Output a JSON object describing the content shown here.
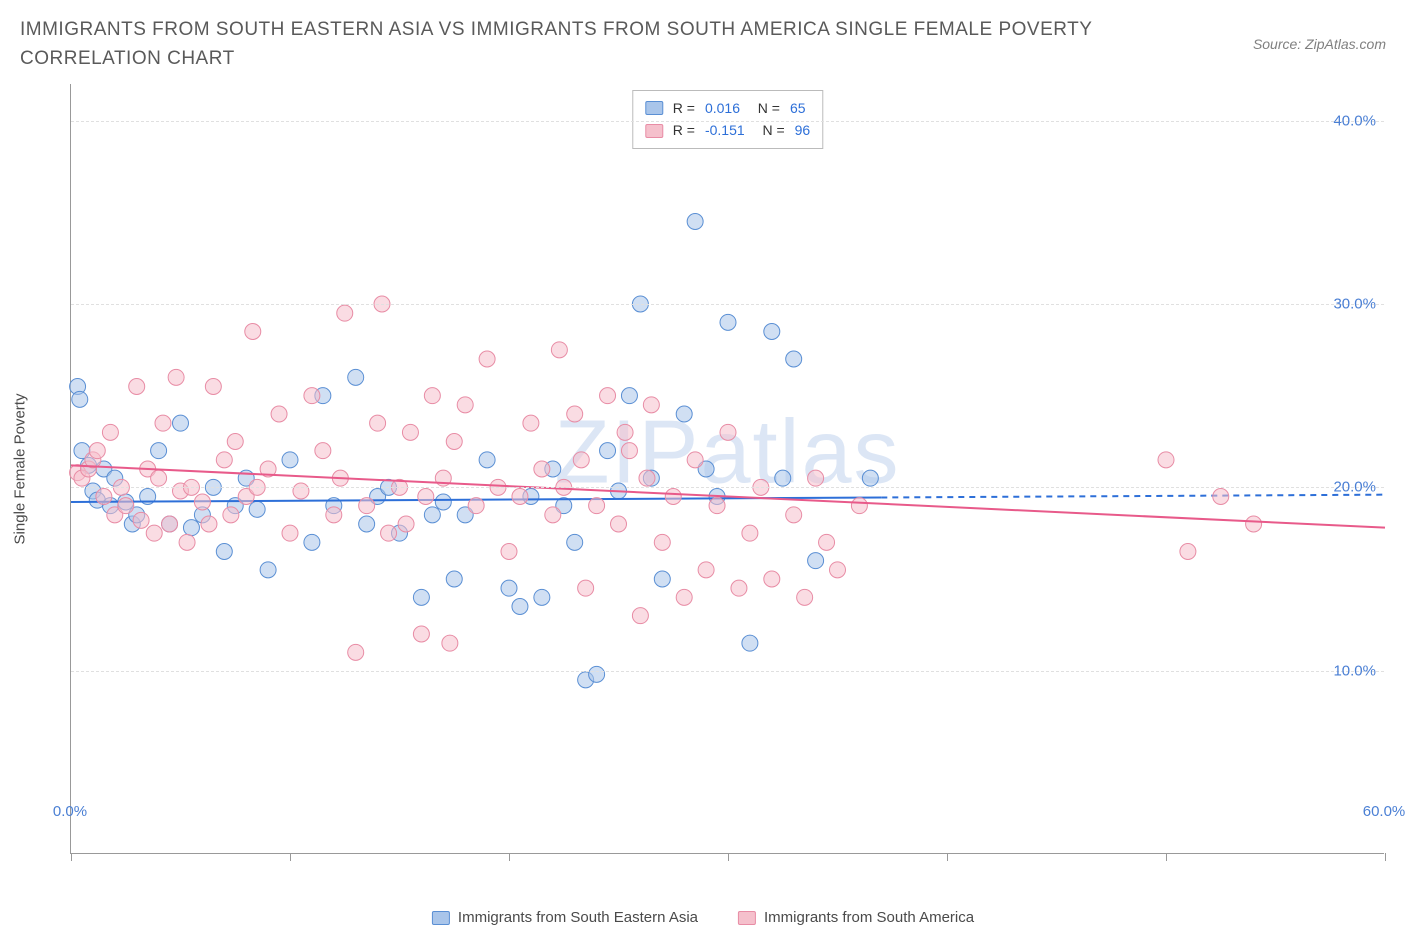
{
  "title": "IMMIGRANTS FROM SOUTH EASTERN ASIA VS IMMIGRANTS FROM SOUTH AMERICA SINGLE FEMALE POVERTY CORRELATION CHART",
  "source": "Source: ZipAtlas.com",
  "watermark": "ZIPatlas",
  "chart": {
    "type": "scatter",
    "y_label": "Single Female Poverty",
    "xlim": [
      0,
      60
    ],
    "ylim": [
      0,
      42
    ],
    "x_ticks": [
      0,
      10,
      20,
      30,
      40,
      50,
      60
    ],
    "x_tick_labels": {
      "0": "0.0%",
      "60": "60.0%"
    },
    "y_gridlines": [
      10,
      20,
      30,
      40
    ],
    "y_tick_labels": {
      "10": "10.0%",
      "20": "20.0%",
      "30": "30.0%",
      "40": "40.0%"
    },
    "background_color": "#ffffff",
    "grid_color": "#e0e0e0",
    "axis_color": "#999999",
    "tick_label_color": "#4a7fd4",
    "marker_radius": 8,
    "marker_opacity": 0.55,
    "series": [
      {
        "name": "Immigrants from South Eastern Asia",
        "color_fill": "#a9c5ea",
        "color_stroke": "#5a8fd4",
        "stats": {
          "R": "0.016",
          "N": "65"
        },
        "trend": {
          "y_start": 19.2,
          "y_end": 19.6,
          "solid_to_x": 37,
          "color": "#2d6fd8"
        },
        "points": [
          [
            0.3,
            25.5
          ],
          [
            0.4,
            24.8
          ],
          [
            0.5,
            22.0
          ],
          [
            0.8,
            21.2
          ],
          [
            1.0,
            19.8
          ],
          [
            1.2,
            19.3
          ],
          [
            1.5,
            21.0
          ],
          [
            1.8,
            19.0
          ],
          [
            2.0,
            20.5
          ],
          [
            2.5,
            19.2
          ],
          [
            2.8,
            18.0
          ],
          [
            3.0,
            18.5
          ],
          [
            3.5,
            19.5
          ],
          [
            4.0,
            22.0
          ],
          [
            4.5,
            18.0
          ],
          [
            5.0,
            23.5
          ],
          [
            5.5,
            17.8
          ],
          [
            6.0,
            18.5
          ],
          [
            6.5,
            20.0
          ],
          [
            7.0,
            16.5
          ],
          [
            7.5,
            19.0
          ],
          [
            8.0,
            20.5
          ],
          [
            8.5,
            18.8
          ],
          [
            9.0,
            15.5
          ],
          [
            10.0,
            21.5
          ],
          [
            11.0,
            17.0
          ],
          [
            11.5,
            25.0
          ],
          [
            12.0,
            19.0
          ],
          [
            13.0,
            26.0
          ],
          [
            13.5,
            18.0
          ],
          [
            14.0,
            19.5
          ],
          [
            14.5,
            20.0
          ],
          [
            15.0,
            17.5
          ],
          [
            16.0,
            14.0
          ],
          [
            16.5,
            18.5
          ],
          [
            17.0,
            19.2
          ],
          [
            17.5,
            15.0
          ],
          [
            18.0,
            18.5
          ],
          [
            19.0,
            21.5
          ],
          [
            20.0,
            14.5
          ],
          [
            20.5,
            13.5
          ],
          [
            21.0,
            19.5
          ],
          [
            21.5,
            14.0
          ],
          [
            22.0,
            21.0
          ],
          [
            22.5,
            19.0
          ],
          [
            23.0,
            17.0
          ],
          [
            23.5,
            9.5
          ],
          [
            24.0,
            9.8
          ],
          [
            24.5,
            22.0
          ],
          [
            25.0,
            19.8
          ],
          [
            25.5,
            25.0
          ],
          [
            26.0,
            30.0
          ],
          [
            26.5,
            20.5
          ],
          [
            27.0,
            15.0
          ],
          [
            28.0,
            24.0
          ],
          [
            28.5,
            34.5
          ],
          [
            29.0,
            21.0
          ],
          [
            29.5,
            19.5
          ],
          [
            30.0,
            29.0
          ],
          [
            31.0,
            11.5
          ],
          [
            32.0,
            28.5
          ],
          [
            32.5,
            20.5
          ],
          [
            33.0,
            27.0
          ],
          [
            34.0,
            16.0
          ],
          [
            36.5,
            20.5
          ]
        ]
      },
      {
        "name": "Immigrants from South America",
        "color_fill": "#f5c0cc",
        "color_stroke": "#e88ca5",
        "stats": {
          "R": "-0.151",
          "N": "96"
        },
        "trend": {
          "y_start": 21.2,
          "y_end": 17.8,
          "solid_to_x": 60,
          "color": "#e85a8a"
        },
        "points": [
          [
            0.3,
            20.8
          ],
          [
            0.5,
            20.5
          ],
          [
            0.8,
            21.0
          ],
          [
            1.0,
            21.5
          ],
          [
            1.2,
            22.0
          ],
          [
            1.5,
            19.5
          ],
          [
            1.8,
            23.0
          ],
          [
            2.0,
            18.5
          ],
          [
            2.3,
            20.0
          ],
          [
            2.5,
            19.0
          ],
          [
            3.0,
            25.5
          ],
          [
            3.2,
            18.2
          ],
          [
            3.5,
            21.0
          ],
          [
            3.8,
            17.5
          ],
          [
            4.0,
            20.5
          ],
          [
            4.2,
            23.5
          ],
          [
            4.5,
            18.0
          ],
          [
            4.8,
            26.0
          ],
          [
            5.0,
            19.8
          ],
          [
            5.3,
            17.0
          ],
          [
            5.5,
            20.0
          ],
          [
            6.0,
            19.2
          ],
          [
            6.3,
            18.0
          ],
          [
            6.5,
            25.5
          ],
          [
            7.0,
            21.5
          ],
          [
            7.3,
            18.5
          ],
          [
            7.5,
            22.5
          ],
          [
            8.0,
            19.5
          ],
          [
            8.3,
            28.5
          ],
          [
            8.5,
            20.0
          ],
          [
            9.0,
            21.0
          ],
          [
            9.5,
            24.0
          ],
          [
            10.0,
            17.5
          ],
          [
            10.5,
            19.8
          ],
          [
            11.0,
            25.0
          ],
          [
            11.5,
            22.0
          ],
          [
            12.0,
            18.5
          ],
          [
            12.3,
            20.5
          ],
          [
            12.5,
            29.5
          ],
          [
            13.0,
            11.0
          ],
          [
            13.5,
            19.0
          ],
          [
            14.0,
            23.5
          ],
          [
            14.2,
            30.0
          ],
          [
            14.5,
            17.5
          ],
          [
            15.0,
            20.0
          ],
          [
            15.3,
            18.0
          ],
          [
            15.5,
            23.0
          ],
          [
            16.0,
            12.0
          ],
          [
            16.2,
            19.5
          ],
          [
            16.5,
            25.0
          ],
          [
            17.0,
            20.5
          ],
          [
            17.3,
            11.5
          ],
          [
            17.5,
            22.5
          ],
          [
            18.0,
            24.5
          ],
          [
            18.5,
            19.0
          ],
          [
            19.0,
            27.0
          ],
          [
            19.5,
            20.0
          ],
          [
            20.0,
            16.5
          ],
          [
            20.5,
            19.5
          ],
          [
            21.0,
            23.5
          ],
          [
            21.5,
            21.0
          ],
          [
            22.0,
            18.5
          ],
          [
            22.3,
            27.5
          ],
          [
            22.5,
            20.0
          ],
          [
            23.0,
            24.0
          ],
          [
            23.3,
            21.5
          ],
          [
            23.5,
            14.5
          ],
          [
            24.0,
            19.0
          ],
          [
            24.5,
            25.0
          ],
          [
            25.0,
            18.0
          ],
          [
            25.3,
            23.0
          ],
          [
            25.5,
            22.0
          ],
          [
            26.0,
            13.0
          ],
          [
            26.3,
            20.5
          ],
          [
            26.5,
            24.5
          ],
          [
            27.0,
            17.0
          ],
          [
            27.5,
            19.5
          ],
          [
            28.0,
            14.0
          ],
          [
            28.5,
            21.5
          ],
          [
            29.0,
            15.5
          ],
          [
            29.5,
            19.0
          ],
          [
            30.0,
            23.0
          ],
          [
            30.5,
            14.5
          ],
          [
            31.0,
            17.5
          ],
          [
            31.5,
            20.0
          ],
          [
            32.0,
            15.0
          ],
          [
            33.0,
            18.5
          ],
          [
            33.5,
            14.0
          ],
          [
            34.0,
            20.5
          ],
          [
            34.5,
            17.0
          ],
          [
            35.0,
            15.5
          ],
          [
            36.0,
            19.0
          ],
          [
            50.0,
            21.5
          ],
          [
            51.0,
            16.5
          ],
          [
            52.5,
            19.5
          ],
          [
            54.0,
            18.0
          ]
        ]
      }
    ],
    "bottom_legend": [
      {
        "label": "Immigrants from South Eastern Asia",
        "fill": "#a9c5ea",
        "stroke": "#5a8fd4"
      },
      {
        "label": "Immigrants from South America",
        "fill": "#f5c0cc",
        "stroke": "#e88ca5"
      }
    ]
  }
}
